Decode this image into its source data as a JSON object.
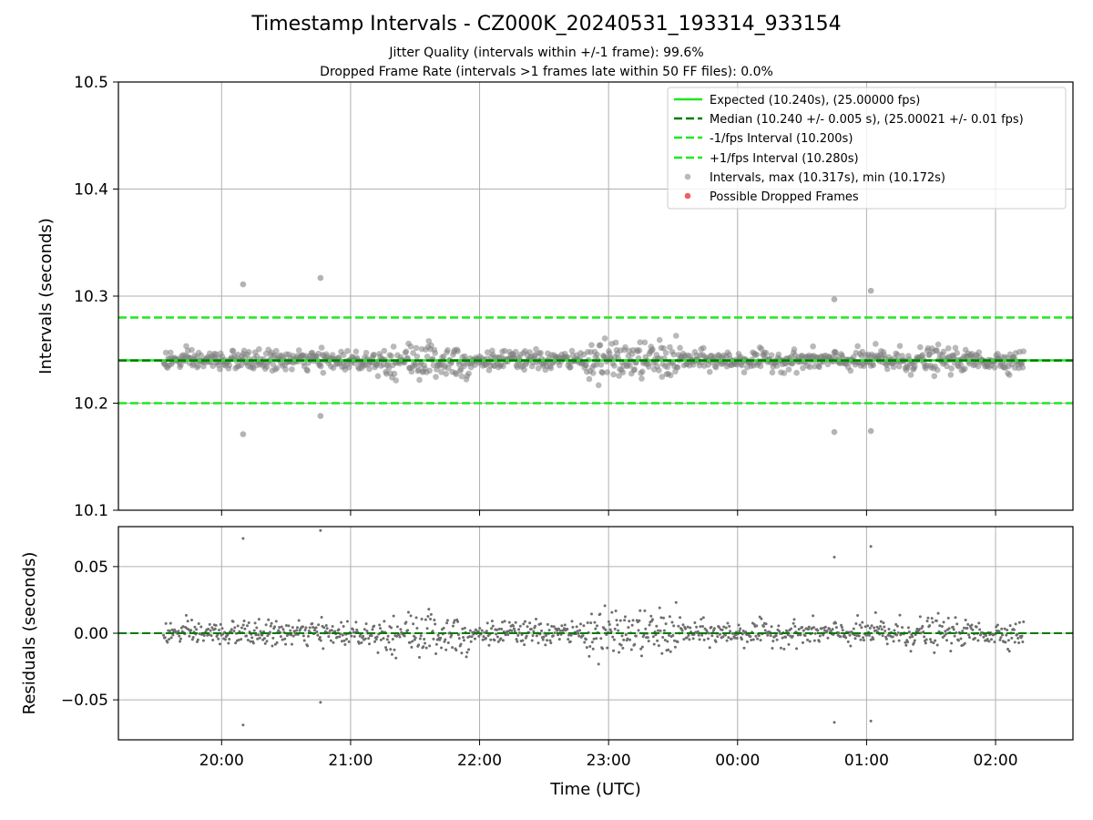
{
  "header": {
    "title": "Timestamp Intervals - CZ000K_20240531_193314_933154",
    "subtitle_1": "Jitter Quality (intervals within +/-1 frame): 99.6%",
    "subtitle_2": "Dropped Frame Rate (intervals >1 frames late within 50 FF files): 0.0%"
  },
  "chart_data": [
    {
      "type": "scatter",
      "panel": "intervals",
      "ylabel": "Intervals (seconds)",
      "xlabel": "",
      "ylim": [
        10.1,
        10.5
      ],
      "yticks": [
        "10.1",
        "10.2",
        "10.3",
        "10.4",
        "10.5"
      ],
      "xlim": [
        "19:12",
        "02:36"
      ],
      "xticks": [
        "20:00",
        "21:00",
        "22:00",
        "23:00",
        "00:00",
        "01:00",
        "02:00"
      ],
      "grid": true,
      "legend_position": "upper right",
      "lines": [
        {
          "name": "Expected (10.240s), (25.00000 fps)",
          "y": 10.24,
          "color": "#1ee81e",
          "style": "solid"
        },
        {
          "name": "Median (10.240 +/- 0.005 s), (25.00021 +/- 0.01 fps)",
          "y": 10.2399,
          "color": "#007a00",
          "style": "dashed"
        },
        {
          "name": "-1/fps Interval (10.200s)",
          "y": 10.2,
          "color": "#1ee81e",
          "style": "dashed"
        },
        {
          "name": "+1/fps Interval (10.280s)",
          "y": 10.28,
          "color": "#1ee81e",
          "style": "dashed"
        }
      ],
      "series": [
        {
          "name": "Intervals, max (10.317s), min (10.172s)",
          "color": "#808080",
          "points_summary": "~2350 intervals between 19:33 and 02:13, centered on 10.240 s",
          "outliers": [
            {
              "x": "20:10",
              "y": 10.311
            },
            {
              "x": "20:10",
              "y": 10.171
            },
            {
              "x": "20:46",
              "y": 10.317
            },
            {
              "x": "20:46",
              "y": 10.188
            },
            {
              "x": "00:45",
              "y": 10.297
            },
            {
              "x": "00:45",
              "y": 10.173
            },
            {
              "x": "01:02",
              "y": 10.305
            },
            {
              "x": "01:02",
              "y": 10.174
            }
          ]
        },
        {
          "name": "Possible Dropped Frames",
          "color": "#f06060",
          "values": []
        }
      ]
    },
    {
      "type": "scatter",
      "panel": "residuals",
      "ylabel": "Residuals (seconds)",
      "xlabel": "Time (UTC)",
      "ylim": [
        -0.08,
        0.08
      ],
      "yticks": [
        "−0.05",
        "0.00",
        "0.05"
      ],
      "xticks": [
        "20:00",
        "21:00",
        "22:00",
        "23:00",
        "00:00",
        "01:00",
        "02:00"
      ],
      "grid": true,
      "zero_line_color": "#007a00",
      "series": [
        {
          "name": "Residuals",
          "color": "#707070",
          "points_summary": "residuals of the intervals relative to the median, mostly within ±0.02 s"
        }
      ]
    }
  ],
  "legend": {
    "items": [
      "Expected (10.240s), (25.00000 fps)",
      "Median (10.240 +/- 0.005 s), (25.00021 +/- 0.01 fps)",
      "-1/fps Interval (10.200s)",
      "+1/fps Interval (10.280s)",
      "Intervals, max (10.317s), min (10.172s)",
      "Possible Dropped Frames"
    ]
  }
}
